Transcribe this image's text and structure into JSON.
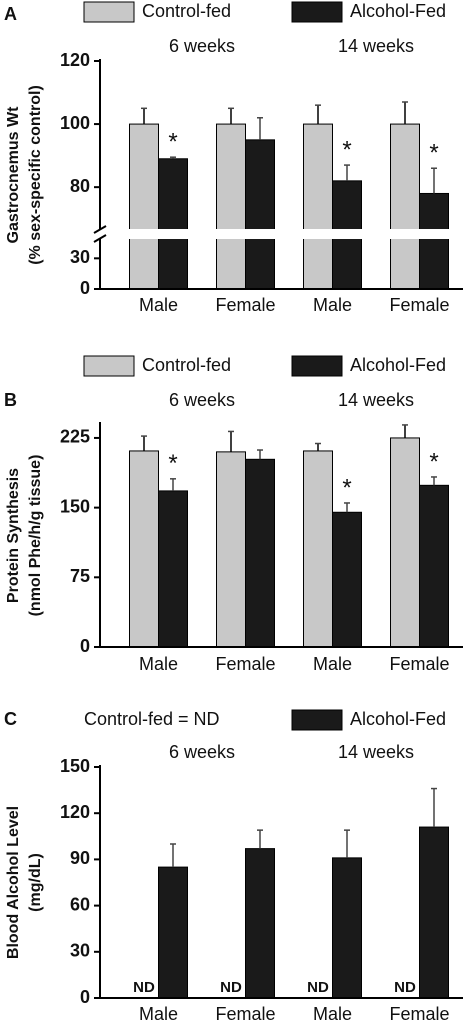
{
  "chart_data": [
    {
      "type": "bar",
      "panel_label": "A",
      "ylabel": [
        "Gastrocnemus Wt",
        "(% sex-specific control)"
      ],
      "groups": [
        "6 weeks",
        "14 weeks"
      ],
      "categories": [
        "Male",
        "Female",
        "Male",
        "Female"
      ],
      "series": [
        {
          "name": "Control-fed",
          "color": "#c8c8c8",
          "values": [
            100,
            100,
            100,
            100
          ],
          "errors": [
            5,
            5,
            6,
            7
          ]
        },
        {
          "name": "Alcohol-Fed",
          "color": "#1a1a1a",
          "values": [
            89,
            95,
            82,
            78
          ],
          "errors": [
            0.5,
            7,
            5,
            8
          ],
          "annotations": [
            "*",
            null,
            "*",
            "*"
          ]
        }
      ],
      "ylim": [
        0,
        120
      ],
      "y_break": [
        45,
        68
      ],
      "yticks": [
        0,
        30,
        80,
        100,
        120
      ]
    },
    {
      "type": "bar",
      "panel_label": "B",
      "ylabel": [
        "Protein Synthesis",
        "(nmol Phe/h/g tissue)"
      ],
      "groups": [
        "6 weeks",
        "14 weeks"
      ],
      "categories": [
        "Male",
        "Female",
        "Male",
        "Female"
      ],
      "series": [
        {
          "name": "Control-fed",
          "color": "#c8c8c8",
          "values": [
            211,
            210,
            211,
            225
          ],
          "errors": [
            16,
            22,
            8,
            14
          ]
        },
        {
          "name": "Alcohol-Fed",
          "color": "#1a1a1a",
          "values": [
            168,
            202,
            145,
            174
          ],
          "errors": [
            13,
            10,
            10,
            9
          ],
          "annotations": [
            "*",
            null,
            "*",
            "*"
          ]
        }
      ],
      "ylim": [
        0,
        240
      ],
      "yticks": [
        0,
        75,
        150,
        225
      ]
    },
    {
      "type": "bar",
      "panel_label": "C",
      "ylabel": [
        "Blood Alcohol Level",
        "(mg/dL)"
      ],
      "groups": [
        "6 weeks",
        "14 weeks"
      ],
      "categories": [
        "Male",
        "Female",
        "Male",
        "Female"
      ],
      "series": [
        {
          "name": "Control-fed = ND",
          "values": [
            null,
            null,
            null,
            null
          ],
          "value_labels": [
            "ND",
            "ND",
            "ND",
            "ND"
          ]
        },
        {
          "name": "Alcohol-Fed",
          "color": "#1a1a1a",
          "values": [
            85,
            97,
            91,
            111
          ],
          "errors": [
            15,
            12,
            18,
            25
          ]
        }
      ],
      "ylim": [
        0,
        150
      ],
      "yticks": [
        0,
        30,
        60,
        90,
        120,
        150
      ]
    }
  ]
}
